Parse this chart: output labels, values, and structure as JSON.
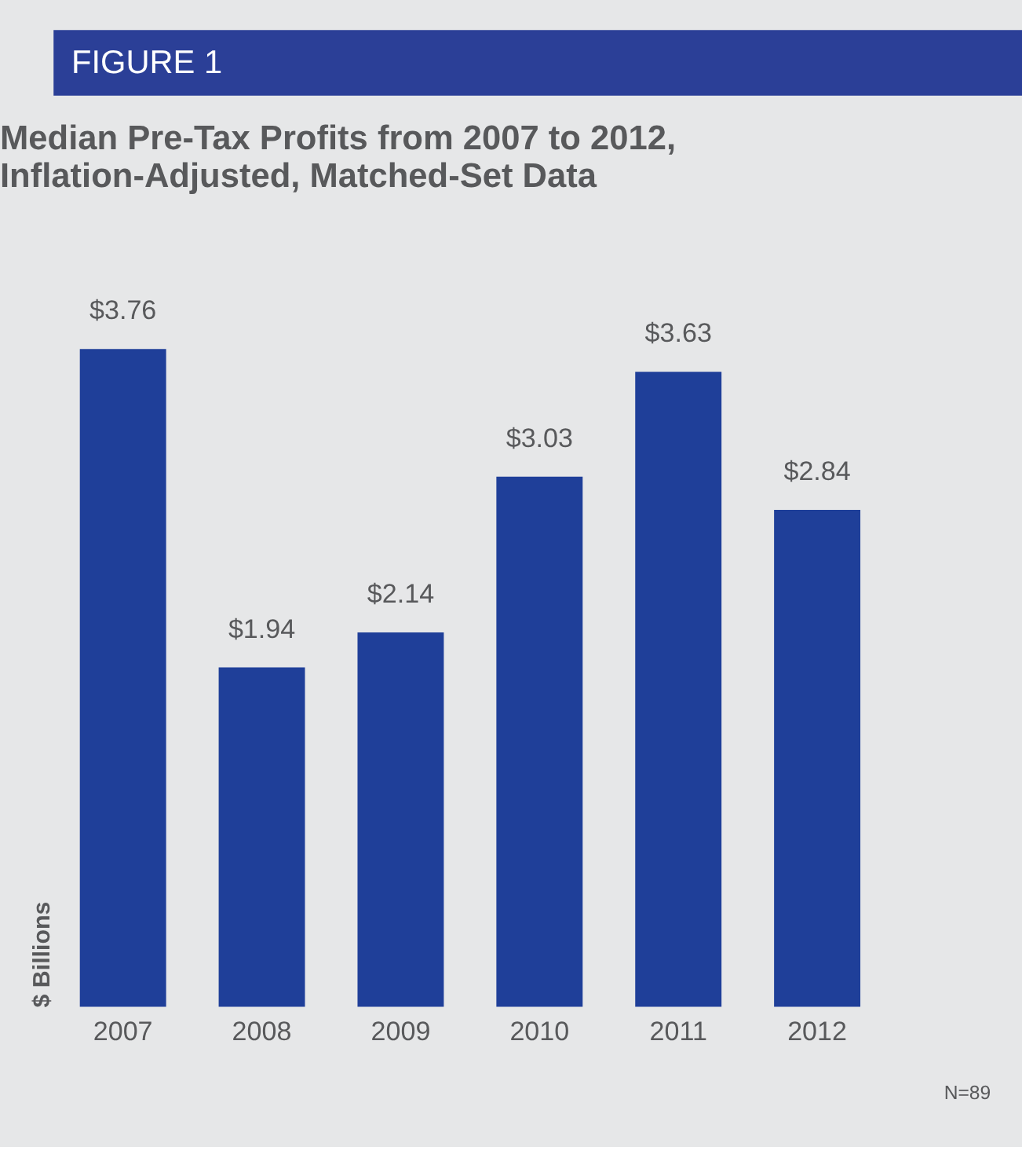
{
  "chart_data": {
    "type": "bar",
    "title": "Median Pre-Tax Profits from 2007 to 2012, Inflation-Adjusted, Matched-Set Data",
    "ylabel": "$ Billions",
    "categories": [
      "2007",
      "2008",
      "2009",
      "2010",
      "2011",
      "2012"
    ],
    "values": [
      3.76,
      1.94,
      2.14,
      3.03,
      3.63,
      2.84
    ],
    "value_labels": [
      "$3.76",
      "$1.94",
      "$2.14",
      "$3.03",
      "$3.63",
      "$2.84"
    ],
    "color": "#1f3f99",
    "annotations": [
      "FIGURE 1",
      "N=89"
    ]
  }
}
